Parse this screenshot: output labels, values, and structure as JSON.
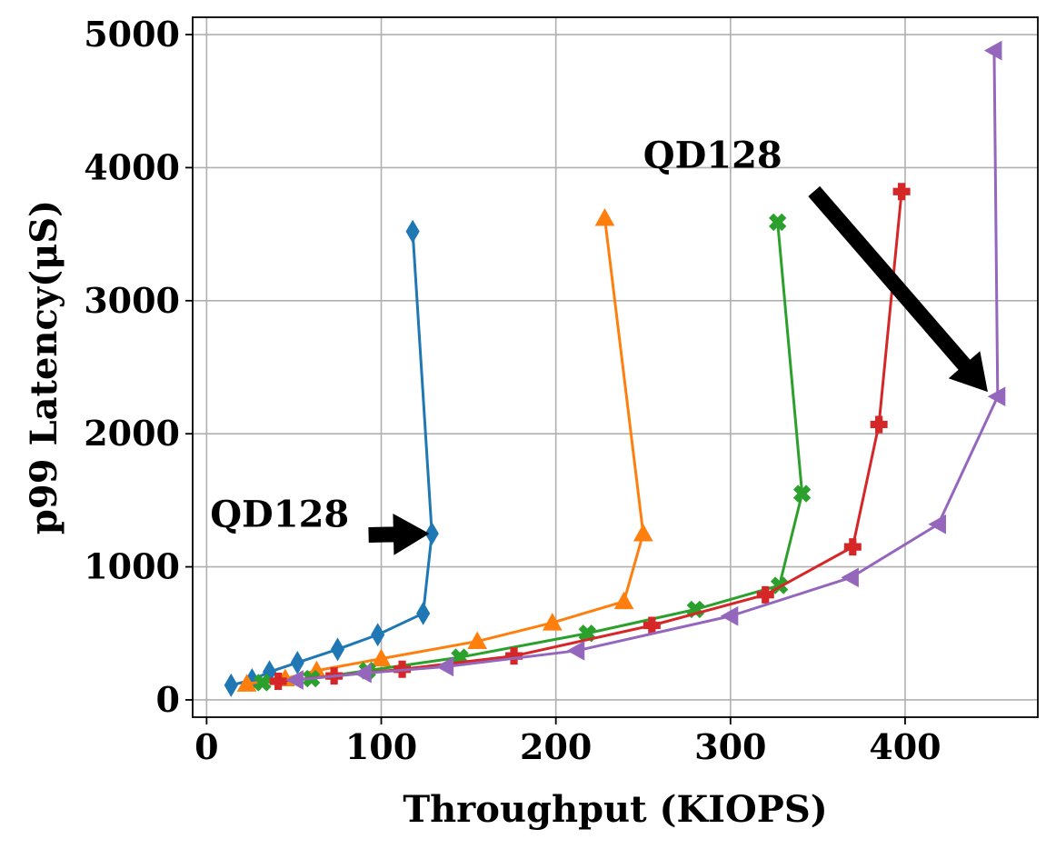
{
  "chart_data": {
    "type": "line",
    "xlabel": "Throughput (KIOPS)",
    "ylabel": "p99 Latency(μS)",
    "xlim": [
      -8,
      476
    ],
    "ylim": [
      -130,
      5130
    ],
    "xticks": [
      0,
      100,
      200,
      300,
      400
    ],
    "yticks": [
      0,
      1000,
      2000,
      3000,
      4000,
      5000
    ],
    "xtick_labels": [
      "0",
      "100",
      "200",
      "300",
      "400"
    ],
    "ytick_labels": [
      "0",
      "1000",
      "2000",
      "3000",
      "4000",
      "5000"
    ],
    "grid": true,
    "legend": "none",
    "series": [
      {
        "color": "#1f77b4",
        "marker": "thin-diamond",
        "x": [
          14,
          26,
          36,
          52,
          75,
          98,
          124,
          129,
          118
        ],
        "y": [
          110,
          150,
          210,
          280,
          380,
          490,
          650,
          1250,
          3520
        ]
      },
      {
        "color": "#ff7f0e",
        "marker": "triangle-up",
        "x": [
          23,
          45,
          63,
          100,
          155,
          198,
          239,
          250,
          228
        ],
        "y": [
          120,
          160,
          220,
          310,
          440,
          580,
          740,
          1250,
          3620
        ]
      },
      {
        "color": "#2ca02c",
        "marker": "x-filled",
        "x": [
          32,
          60,
          92,
          145,
          218,
          280,
          328,
          341,
          327
        ],
        "y": [
          130,
          160,
          220,
          320,
          500,
          680,
          860,
          1550,
          3590
        ]
      },
      {
        "color": "#d62728",
        "marker": "plus-filled",
        "x": [
          41,
          73,
          112,
          176,
          255,
          320,
          370,
          385,
          398
        ],
        "y": [
          140,
          180,
          230,
          330,
          560,
          790,
          1150,
          2070,
          3820
        ]
      },
      {
        "color": "#9467bd",
        "marker": "triangle-left",
        "x": [
          51,
          90,
          137,
          212,
          300,
          369,
          419,
          453,
          451
        ],
        "y": [
          150,
          200,
          250,
          370,
          630,
          920,
          1320,
          2280,
          4880
        ]
      }
    ],
    "annotations": [
      {
        "text": "QD128",
        "text_at": [
          2,
          1300
        ],
        "arrow_from": [
          93,
          1240
        ],
        "arrow_to": [
          127,
          1250
        ]
      },
      {
        "text": "QD128",
        "text_at": [
          250,
          4000
        ],
        "arrow_from": [
          348,
          3820
        ],
        "arrow_to": [
          447,
          2320
        ]
      }
    ]
  }
}
